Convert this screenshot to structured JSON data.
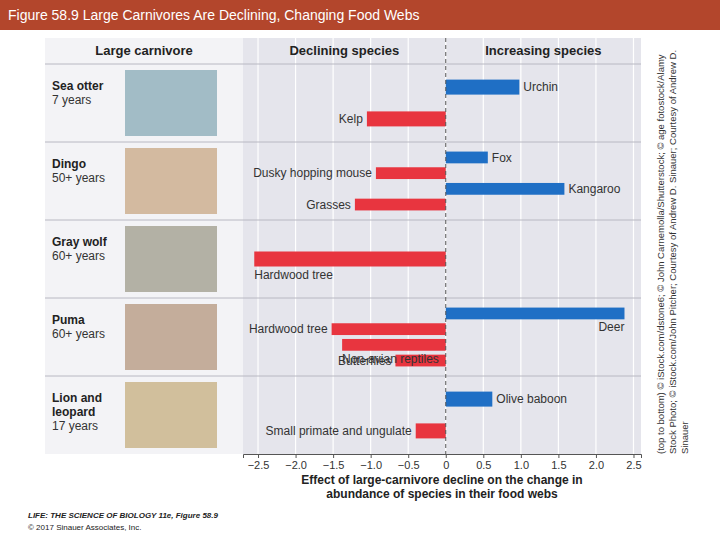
{
  "chart_data": {
    "type": "bar",
    "orientation": "horizontal",
    "title": "Figure 58.9 Large Carnivores Are Declining, Changing Food Webs",
    "column_titles": [
      "Large carnivore",
      "Declining species",
      "Increasing species"
    ],
    "groups": [
      {
        "name": "Sea otter",
        "period": "7 years",
        "categories": [
          "Urchin",
          "Kelp"
        ],
        "values": [
          0.98,
          -1.05
        ],
        "colors": [
          "#1f6fc5",
          "#e8353f"
        ]
      },
      {
        "name": "Dingo",
        "period": "50+ years",
        "categories": [
          "Fox",
          "Dusky hopping mouse",
          "Kangaroo",
          "Grasses"
        ],
        "values": [
          0.56,
          -0.93,
          1.58,
          -1.21
        ],
        "colors": [
          "#1f6fc5",
          "#e8353f",
          "#1f6fc5",
          "#e8353f"
        ]
      },
      {
        "name": "Gray wolf",
        "period": "60+ years",
        "categories": [
          "Hardwood tree"
        ],
        "values": [
          -2.55
        ],
        "colors": [
          "#e8353f"
        ]
      },
      {
        "name": "Puma",
        "period": "60+ years",
        "categories": [
          "Deer",
          "Hardwood tree",
          "Non-avian reptiles",
          "Butterflies"
        ],
        "values": [
          2.38,
          -1.52,
          -1.38,
          -0.67
        ],
        "colors": [
          "#1f6fc5",
          "#e8353f",
          "#e8353f",
          "#e8353f"
        ]
      },
      {
        "name": "Lion and leopard",
        "period": "17 years",
        "categories": [
          "Olive baboon",
          "Small primate and ungulate"
        ],
        "values": [
          0.62,
          -0.4
        ],
        "colors": [
          "#1f6fc5",
          "#e8353f"
        ]
      }
    ],
    "xlabel": "Effect of large-carnivore decline on the change in abundance of species in their food webs",
    "xlim": [
      -2.7,
      2.6
    ],
    "xticks": [
      {
        "value": -2.5,
        "label": "−2.5"
      },
      {
        "value": -2,
        "label": "−2.0"
      },
      {
        "value": -1.5,
        "label": "−1.5"
      },
      {
        "value": -1,
        "label": "−1.0"
      },
      {
        "value": -0.5,
        "label": "−0.5"
      },
      0,
      0.5,
      {
        "value": 1,
        "label": "1.0"
      },
      1.5,
      {
        "value": 2,
        "label": "2.0"
      },
      2.5
    ],
    "grid": true,
    "tick_labels": "x",
    "annotations": [
      "(top to bottom) © iStock.com/dstone6; © John Carnemolla/Shutterstock; © age fotostock/Alamy Stock Photo; © iStock.com/John Pitcher; Courtesy of Andrew D. Sinauer; Courtesy of Andrew D. Sinauer",
      "LIFE: THE SCIENCE OF BIOLOGY 11e, Figure 58.9",
      "© 2017 Sinauer Associates, Inc."
    ]
  }
}
